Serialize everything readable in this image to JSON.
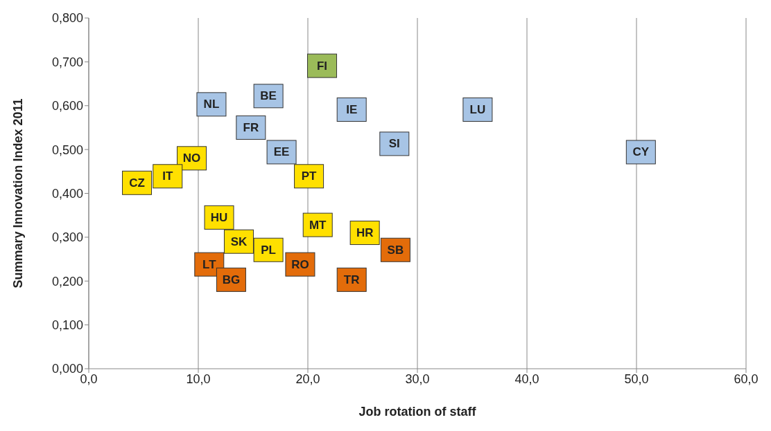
{
  "chart_data": {
    "type": "scatter",
    "xlabel": "Job rotation of staff",
    "ylabel": "Summary Innovation Index 2011",
    "xlim": [
      0,
      60
    ],
    "xticks": [
      {
        "value": 0,
        "label": "0,0"
      },
      {
        "value": 10,
        "label": "10,0"
      },
      {
        "value": 20,
        "label": "20,0"
      },
      {
        "value": 30,
        "label": "30,0"
      },
      {
        "value": 40,
        "label": "40,0"
      },
      {
        "value": 50,
        "label": "50,0"
      },
      {
        "value": 60,
        "label": "60,0"
      }
    ],
    "ylim": [
      0,
      0.8
    ],
    "yticks": [
      {
        "value": 0,
        "label": "0,000"
      },
      {
        "value": 0.1,
        "label": "0,100"
      },
      {
        "value": 0.2,
        "label": "0,200"
      },
      {
        "value": 0.3,
        "label": "0,300"
      },
      {
        "value": 0.4,
        "label": "0,400"
      },
      {
        "value": 0.5,
        "label": "0,500"
      },
      {
        "value": 0.6,
        "label": "0,600"
      },
      {
        "value": 0.7,
        "label": "0,700"
      },
      {
        "value": 0.8,
        "label": "0,800"
      }
    ],
    "grid": "x",
    "marker": "square",
    "series": [
      {
        "color": "#9bbb59",
        "x": [
          21.3
        ],
        "values": [
          0.691
        ],
        "value_labels": [
          "FI"
        ]
      },
      {
        "color": "#a7c4e5",
        "x": [
          11.2,
          16.4,
          24.0,
          35.5,
          27.9,
          50.4,
          14.8,
          17.6
        ],
        "values": [
          0.603,
          0.622,
          0.591,
          0.591,
          0.513,
          0.494,
          0.55,
          0.494
        ],
        "value_labels": [
          "NL",
          "BE",
          "IE",
          "LU",
          "SI",
          "CY",
          "FR",
          "EE"
        ]
      },
      {
        "color": "#ffe000",
        "x": [
          9.4,
          7.2,
          4.4,
          20.1,
          11.9,
          20.9,
          25.2,
          13.7,
          16.4
        ],
        "values": [
          0.48,
          0.439,
          0.424,
          0.439,
          0.345,
          0.328,
          0.31,
          0.29,
          0.271
        ],
        "value_labels": [
          "NO",
          "IT",
          "CZ",
          "PT",
          "HU",
          "MT",
          "HR",
          "SK",
          "PL"
        ]
      },
      {
        "color": "#e36c0a",
        "x": [
          28.0,
          11.0,
          19.3,
          13.0,
          24.0
        ],
        "values": [
          0.271,
          0.238,
          0.238,
          0.203,
          0.203
        ],
        "value_labels": [
          "SB",
          "LT",
          "RO",
          "BG",
          "TR"
        ]
      }
    ]
  }
}
